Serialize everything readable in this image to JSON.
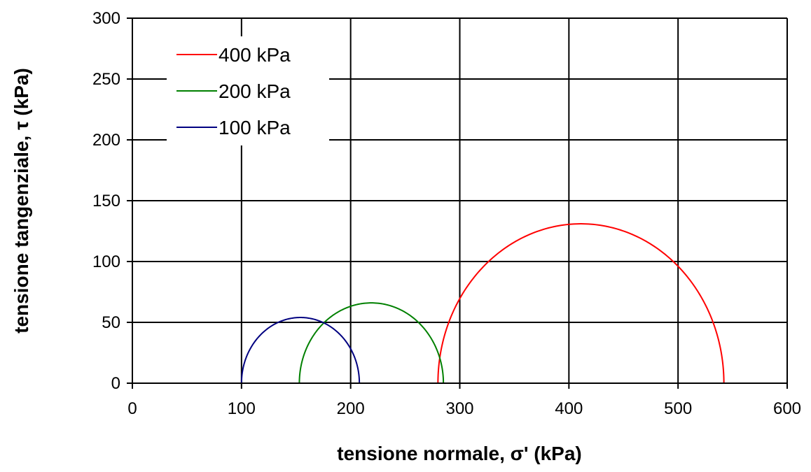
{
  "chart_data": {
    "type": "line",
    "title": "",
    "xlabel": "tensione normale, σ' (kPa)",
    "ylabel": "tensione tangenziale, τ (kPa)",
    "xlim": [
      0,
      600
    ],
    "ylim": [
      0,
      300
    ],
    "xticks": [
      "0",
      "100",
      "200",
      "300",
      "400",
      "500",
      "600"
    ],
    "yticks": [
      "0",
      "50",
      "100",
      "150",
      "200",
      "250",
      "300"
    ],
    "grid": true,
    "legend_position": "top-left",
    "series": [
      {
        "name": "400 kPa",
        "color": "#ff0000",
        "shape": "mohr-circle",
        "center": 411,
        "radius": 131,
        "x_range": [
          280,
          542
        ]
      },
      {
        "name": "200 kPa",
        "color": "#008000",
        "shape": "mohr-circle",
        "center": 219,
        "radius": 66,
        "x_range": [
          153,
          285
        ]
      },
      {
        "name": "100 kPa",
        "color": "#000080",
        "shape": "mohr-circle",
        "center": 154,
        "radius": 54,
        "x_range": [
          100,
          208
        ]
      }
    ]
  }
}
